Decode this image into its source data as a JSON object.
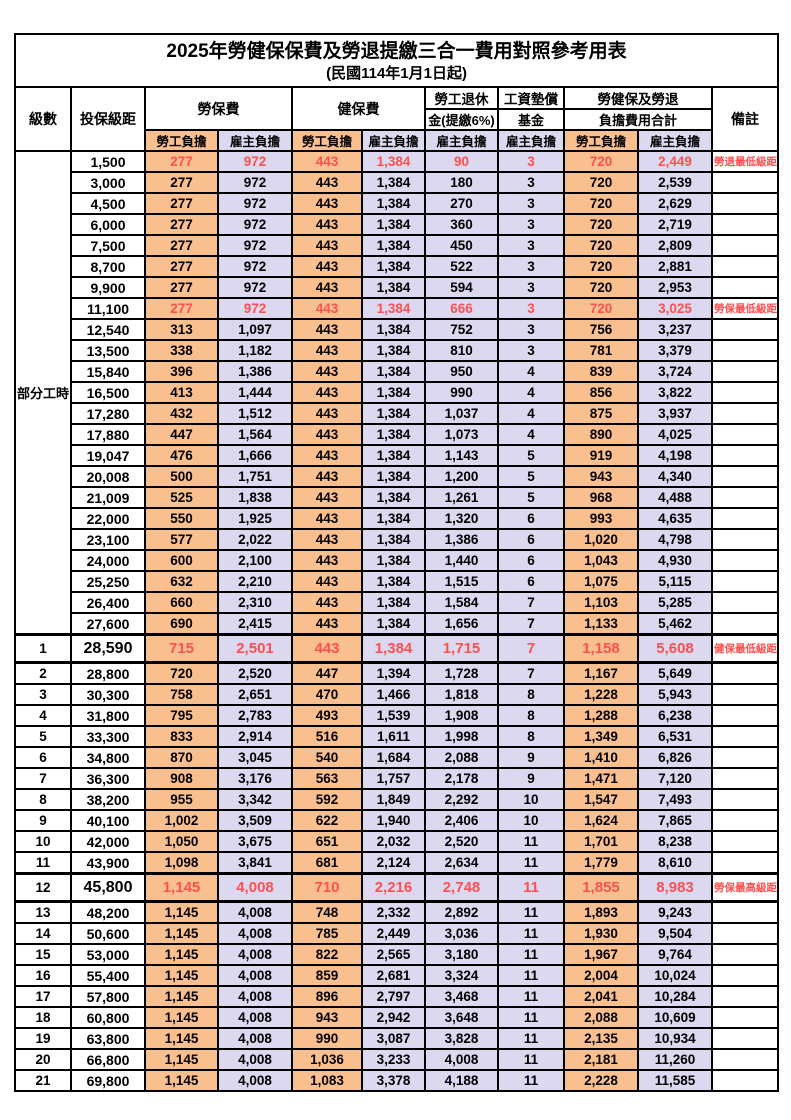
{
  "title": "2025年勞健保保費及勞退提繳三合一費用對照參考用表",
  "subtitle": "(民國114年1月1日起)",
  "colors": {
    "employee_fill": "#FABF8F",
    "employer_fill": "#DBD8EF",
    "highlight_text": "#FF5050",
    "remark_text": "#FF4D4D",
    "grid": "#000000"
  },
  "header": {
    "level": "級數",
    "bracket": "投保級距",
    "labor_insurance": "勞保費",
    "health_insurance": "健保費",
    "pension_line1": "勞工退休",
    "pension_line2": "金(提繳6%)",
    "wage_fund_line1": "工資墊償",
    "wage_fund_line2": "基金",
    "total_line1": "勞健保及勞退",
    "total_line2": "負擔費用合計",
    "remark": "備註",
    "employee": "勞工負擔",
    "employer": "雇主負擔"
  },
  "part_time_label": "部分工時",
  "rows": [
    {
      "level": "",
      "bracket": "1,500",
      "values": [
        "277",
        "972",
        "443",
        "1,384",
        "90",
        "3",
        "720",
        "2,449"
      ],
      "remark": "勞退最低級距",
      "red": true,
      "special": false
    },
    {
      "level": "",
      "bracket": "3,000",
      "values": [
        "277",
        "972",
        "443",
        "1,384",
        "180",
        "3",
        "720",
        "2,539"
      ],
      "remark": "",
      "red": false,
      "special": false
    },
    {
      "level": "",
      "bracket": "4,500",
      "values": [
        "277",
        "972",
        "443",
        "1,384",
        "270",
        "3",
        "720",
        "2,629"
      ],
      "remark": "",
      "red": false,
      "special": false
    },
    {
      "level": "",
      "bracket": "6,000",
      "values": [
        "277",
        "972",
        "443",
        "1,384",
        "360",
        "3",
        "720",
        "2,719"
      ],
      "remark": "",
      "red": false,
      "special": false
    },
    {
      "level": "",
      "bracket": "7,500",
      "values": [
        "277",
        "972",
        "443",
        "1,384",
        "450",
        "3",
        "720",
        "2,809"
      ],
      "remark": "",
      "red": false,
      "special": false
    },
    {
      "level": "",
      "bracket": "8,700",
      "values": [
        "277",
        "972",
        "443",
        "1,384",
        "522",
        "3",
        "720",
        "2,881"
      ],
      "remark": "",
      "red": false,
      "special": false
    },
    {
      "level": "",
      "bracket": "9,900",
      "values": [
        "277",
        "972",
        "443",
        "1,384",
        "594",
        "3",
        "720",
        "2,953"
      ],
      "remark": "",
      "red": false,
      "special": false
    },
    {
      "level": "",
      "bracket": "11,100",
      "values": [
        "277",
        "972",
        "443",
        "1,384",
        "666",
        "3",
        "720",
        "3,025"
      ],
      "remark": "勞保最低級距",
      "red": true,
      "special": false
    },
    {
      "level": "",
      "bracket": "12,540",
      "values": [
        "313",
        "1,097",
        "443",
        "1,384",
        "752",
        "3",
        "756",
        "3,237"
      ],
      "remark": "",
      "red": false,
      "special": false
    },
    {
      "level": "",
      "bracket": "13,500",
      "values": [
        "338",
        "1,182",
        "443",
        "1,384",
        "810",
        "3",
        "781",
        "3,379"
      ],
      "remark": "",
      "red": false,
      "special": false
    },
    {
      "level": "",
      "bracket": "15,840",
      "values": [
        "396",
        "1,386",
        "443",
        "1,384",
        "950",
        "4",
        "839",
        "3,724"
      ],
      "remark": "",
      "red": false,
      "special": false
    },
    {
      "level": "",
      "bracket": "16,500",
      "values": [
        "413",
        "1,444",
        "443",
        "1,384",
        "990",
        "4",
        "856",
        "3,822"
      ],
      "remark": "",
      "red": false,
      "special": false
    },
    {
      "level": "",
      "bracket": "17,280",
      "values": [
        "432",
        "1,512",
        "443",
        "1,384",
        "1,037",
        "4",
        "875",
        "3,937"
      ],
      "remark": "",
      "red": false,
      "special": false
    },
    {
      "level": "",
      "bracket": "17,880",
      "values": [
        "447",
        "1,564",
        "443",
        "1,384",
        "1,073",
        "4",
        "890",
        "4,025"
      ],
      "remark": "",
      "red": false,
      "special": false
    },
    {
      "level": "",
      "bracket": "19,047",
      "values": [
        "476",
        "1,666",
        "443",
        "1,384",
        "1,143",
        "5",
        "919",
        "4,198"
      ],
      "remark": "",
      "red": false,
      "special": false
    },
    {
      "level": "",
      "bracket": "20,008",
      "values": [
        "500",
        "1,751",
        "443",
        "1,384",
        "1,200",
        "5",
        "943",
        "4,340"
      ],
      "remark": "",
      "red": false,
      "special": false
    },
    {
      "level": "",
      "bracket": "21,009",
      "values": [
        "525",
        "1,838",
        "443",
        "1,384",
        "1,261",
        "5",
        "968",
        "4,488"
      ],
      "remark": "",
      "red": false,
      "special": false
    },
    {
      "level": "",
      "bracket": "22,000",
      "values": [
        "550",
        "1,925",
        "443",
        "1,384",
        "1,320",
        "6",
        "993",
        "4,635"
      ],
      "remark": "",
      "red": false,
      "special": false
    },
    {
      "level": "",
      "bracket": "23,100",
      "values": [
        "577",
        "2,022",
        "443",
        "1,384",
        "1,386",
        "6",
        "1,020",
        "4,798"
      ],
      "remark": "",
      "red": false,
      "special": false
    },
    {
      "level": "",
      "bracket": "24,000",
      "values": [
        "600",
        "2,100",
        "443",
        "1,384",
        "1,440",
        "6",
        "1,043",
        "4,930"
      ],
      "remark": "",
      "red": false,
      "special": false
    },
    {
      "level": "",
      "bracket": "25,250",
      "values": [
        "632",
        "2,210",
        "443",
        "1,384",
        "1,515",
        "6",
        "1,075",
        "5,115"
      ],
      "remark": "",
      "red": false,
      "special": false
    },
    {
      "level": "",
      "bracket": "26,400",
      "values": [
        "660",
        "2,310",
        "443",
        "1,384",
        "1,584",
        "7",
        "1,103",
        "5,285"
      ],
      "remark": "",
      "red": false,
      "special": false
    },
    {
      "level": "",
      "bracket": "27,600",
      "values": [
        "690",
        "2,415",
        "443",
        "1,384",
        "1,656",
        "7",
        "1,133",
        "5,462"
      ],
      "remark": "",
      "red": false,
      "special": false
    },
    {
      "level": "1",
      "bracket": "28,590",
      "values": [
        "715",
        "2,501",
        "443",
        "1,384",
        "1,715",
        "7",
        "1,158",
        "5,608"
      ],
      "remark": "健保最低級距",
      "red": true,
      "special": true
    },
    {
      "level": "2",
      "bracket": "28,800",
      "values": [
        "720",
        "2,520",
        "447",
        "1,394",
        "1,728",
        "7",
        "1,167",
        "5,649"
      ],
      "remark": "",
      "red": false,
      "special": false
    },
    {
      "level": "3",
      "bracket": "30,300",
      "values": [
        "758",
        "2,651",
        "470",
        "1,466",
        "1,818",
        "8",
        "1,228",
        "5,943"
      ],
      "remark": "",
      "red": false,
      "special": false
    },
    {
      "level": "4",
      "bracket": "31,800",
      "values": [
        "795",
        "2,783",
        "493",
        "1,539",
        "1,908",
        "8",
        "1,288",
        "6,238"
      ],
      "remark": "",
      "red": false,
      "special": false
    },
    {
      "level": "5",
      "bracket": "33,300",
      "values": [
        "833",
        "2,914",
        "516",
        "1,611",
        "1,998",
        "8",
        "1,349",
        "6,531"
      ],
      "remark": "",
      "red": false,
      "special": false
    },
    {
      "level": "6",
      "bracket": "34,800",
      "values": [
        "870",
        "3,045",
        "540",
        "1,684",
        "2,088",
        "9",
        "1,410",
        "6,826"
      ],
      "remark": "",
      "red": false,
      "special": false
    },
    {
      "level": "7",
      "bracket": "36,300",
      "values": [
        "908",
        "3,176",
        "563",
        "1,757",
        "2,178",
        "9",
        "1,471",
        "7,120"
      ],
      "remark": "",
      "red": false,
      "special": false
    },
    {
      "level": "8",
      "bracket": "38,200",
      "values": [
        "955",
        "3,342",
        "592",
        "1,849",
        "2,292",
        "10",
        "1,547",
        "7,493"
      ],
      "remark": "",
      "red": false,
      "special": false
    },
    {
      "level": "9",
      "bracket": "40,100",
      "values": [
        "1,002",
        "3,509",
        "622",
        "1,940",
        "2,406",
        "10",
        "1,624",
        "7,865"
      ],
      "remark": "",
      "red": false,
      "special": false
    },
    {
      "level": "10",
      "bracket": "42,000",
      "values": [
        "1,050",
        "3,675",
        "651",
        "2,032",
        "2,520",
        "11",
        "1,701",
        "8,238"
      ],
      "remark": "",
      "red": false,
      "special": false
    },
    {
      "level": "11",
      "bracket": "43,900",
      "values": [
        "1,098",
        "3,841",
        "681",
        "2,124",
        "2,634",
        "11",
        "1,779",
        "8,610"
      ],
      "remark": "",
      "red": false,
      "special": false
    },
    {
      "level": "12",
      "bracket": "45,800",
      "values": [
        "1,145",
        "4,008",
        "710",
        "2,216",
        "2,748",
        "11",
        "1,855",
        "8,983"
      ],
      "remark": "勞保最高級距",
      "red": true,
      "special": true
    },
    {
      "level": "13",
      "bracket": "48,200",
      "values": [
        "1,145",
        "4,008",
        "748",
        "2,332",
        "2,892",
        "11",
        "1,893",
        "9,243"
      ],
      "remark": "",
      "red": false,
      "special": false
    },
    {
      "level": "14",
      "bracket": "50,600",
      "values": [
        "1,145",
        "4,008",
        "785",
        "2,449",
        "3,036",
        "11",
        "1,930",
        "9,504"
      ],
      "remark": "",
      "red": false,
      "special": false
    },
    {
      "level": "15",
      "bracket": "53,000",
      "values": [
        "1,145",
        "4,008",
        "822",
        "2,565",
        "3,180",
        "11",
        "1,967",
        "9,764"
      ],
      "remark": "",
      "red": false,
      "special": false
    },
    {
      "level": "16",
      "bracket": "55,400",
      "values": [
        "1,145",
        "4,008",
        "859",
        "2,681",
        "3,324",
        "11",
        "2,004",
        "10,024"
      ],
      "remark": "",
      "red": false,
      "special": false
    },
    {
      "level": "17",
      "bracket": "57,800",
      "values": [
        "1,145",
        "4,008",
        "896",
        "2,797",
        "3,468",
        "11",
        "2,041",
        "10,284"
      ],
      "remark": "",
      "red": false,
      "special": false
    },
    {
      "level": "18",
      "bracket": "60,800",
      "values": [
        "1,145",
        "4,008",
        "943",
        "2,942",
        "3,648",
        "11",
        "2,088",
        "10,609"
      ],
      "remark": "",
      "red": false,
      "special": false
    },
    {
      "level": "19",
      "bracket": "63,800",
      "values": [
        "1,145",
        "4,008",
        "990",
        "3,087",
        "3,828",
        "11",
        "2,135",
        "10,934"
      ],
      "remark": "",
      "red": false,
      "special": false
    },
    {
      "level": "20",
      "bracket": "66,800",
      "values": [
        "1,145",
        "4,008",
        "1,036",
        "3,233",
        "4,008",
        "11",
        "2,181",
        "11,260"
      ],
      "remark": "",
      "red": false,
      "special": false
    },
    {
      "level": "21",
      "bracket": "69,800",
      "values": [
        "1,145",
        "4,008",
        "1,083",
        "3,378",
        "4,188",
        "11",
        "2,228",
        "11,585"
      ],
      "remark": "",
      "red": false,
      "special": false
    }
  ]
}
